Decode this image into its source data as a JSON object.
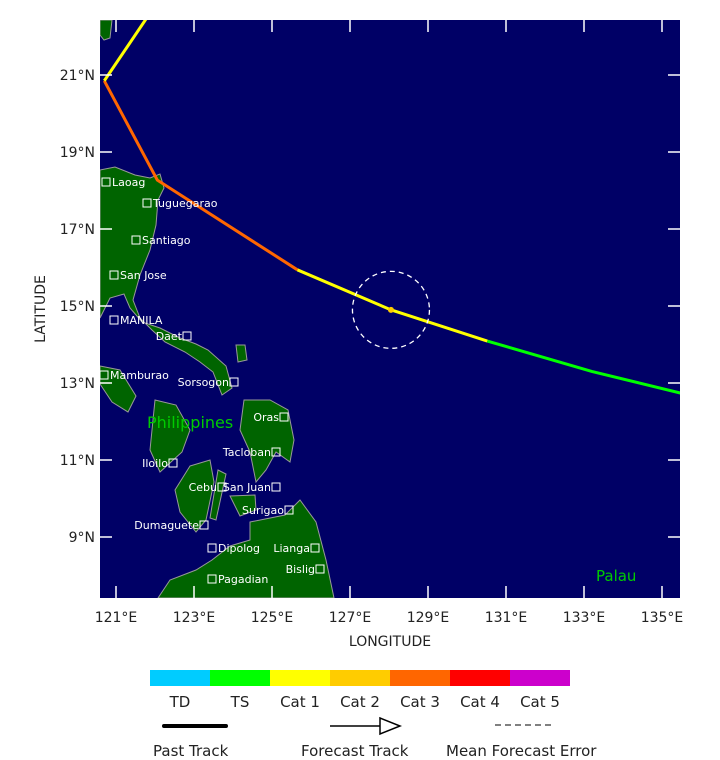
{
  "map": {
    "extent": {
      "lon": [
        120.6,
        135.5
      ],
      "lat": [
        7.5,
        22.5
      ]
    },
    "xlabel": "LONGITUDE",
    "ylabel": "LATITUDE",
    "lon_ticks": [
      "121°E",
      "123°E",
      "125°E",
      "127°E",
      "129°E",
      "131°E",
      "133°E",
      "135°E"
    ],
    "lat_ticks": [
      "21°N",
      "19°N",
      "17°N",
      "15°N",
      "13°N",
      "11°N",
      "9°N"
    ],
    "colors": {
      "ocean": "#000066",
      "land": "#006400",
      "coast": "#999999"
    },
    "country_labels": [
      {
        "text": "Philippines",
        "color": "#00cc00"
      },
      {
        "text": "Palau",
        "color": "#00cc00"
      }
    ],
    "cities": [
      "Laoag",
      "Tuguegarao",
      "Santiago",
      "San Jose",
      "MANILA",
      "Daet",
      "Mamburao",
      "Sorsogon",
      "Oras",
      "Iloilo",
      "Tacloban",
      "Cebu",
      "San Juan",
      "Surigao",
      "Dumaguete",
      "Dipolog",
      "Lianga",
      "Bislig",
      "Pagadian"
    ]
  },
  "track": {
    "current_position": {
      "lon": 128.05,
      "lat": 14.9
    },
    "mean_forecast_error_radius_deg": 1.0,
    "segments": [
      {
        "category": "TS",
        "points": [
          [
            135.47,
            12.74
          ],
          [
            133.2,
            13.3
          ],
          [
            130.52,
            14.09
          ]
        ]
      },
      {
        "category": "Cat 1",
        "points": [
          [
            130.52,
            14.09
          ],
          [
            128.05,
            14.9
          ],
          [
            125.65,
            15.94
          ]
        ]
      },
      {
        "category": "Cat 3",
        "points": [
          [
            125.65,
            15.94
          ],
          [
            122.06,
            18.27
          ],
          [
            120.7,
            20.85
          ]
        ]
      },
      {
        "category": "Cat 1",
        "points": [
          [
            120.7,
            20.85
          ],
          [
            121.8,
            22.5
          ]
        ]
      }
    ]
  },
  "legend": {
    "categories": [
      {
        "label": "TD",
        "color": "#00ccff"
      },
      {
        "label": "TS",
        "color": "#00ff00"
      },
      {
        "label": "Cat 1",
        "color": "#ffff00"
      },
      {
        "label": "Cat 2",
        "color": "#ffcc00"
      },
      {
        "label": "Cat 3",
        "color": "#ff6600"
      },
      {
        "label": "Cat 4",
        "color": "#ff0000"
      },
      {
        "label": "Cat 5",
        "color": "#cc00cc"
      }
    ],
    "past_track": "Past Track",
    "forecast_track": "Forecast Track",
    "mean_forecast_error": "Mean Forecast Error"
  }
}
